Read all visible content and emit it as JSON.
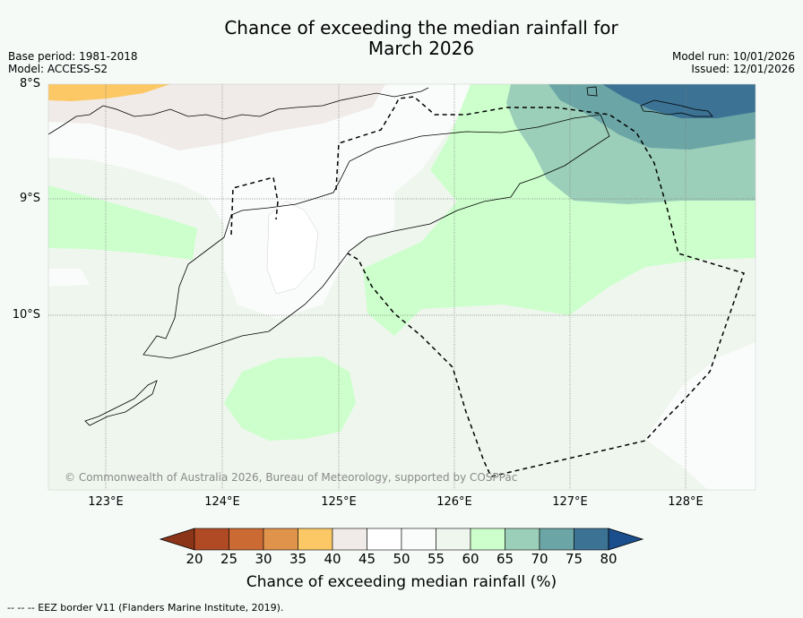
{
  "title_line1": "Chance of exceeding the median rainfall for",
  "title_line2": "March 2026",
  "meta": {
    "base_period": "Base period: 1981-2018",
    "model": "Model: ACCESS-S2",
    "model_run": "Model run: 10/01/2026",
    "issued": "Issued: 12/01/2026"
  },
  "latitudes": [
    "8°S",
    "9°S",
    "10°S"
  ],
  "longitudes": [
    "123°E",
    "124°E",
    "125°E",
    "126°E",
    "127°E",
    "128°E"
  ],
  "copyright": "© Commonwealth of Australia 2026, Bureau of Meteorology, supported by COSPPac",
  "colorbar": {
    "title": "Chance of exceeding median rainfall (%)",
    "ticks": [
      "20",
      "25",
      "30",
      "35",
      "40",
      "45",
      "50",
      "55",
      "60",
      "65",
      "70",
      "75",
      "80"
    ],
    "colors": [
      "#b04a25",
      "#cc6a34",
      "#e0934a",
      "#fcc865",
      "#f0ebe8",
      "#ffffff",
      "#fafcfb",
      "#eff6ee",
      "#ccffcc",
      "#9ccfb9",
      "#6ba5a5",
      "#3c7394"
    ],
    "under_color": "#8b3418",
    "over_color": "#1a4e8c"
  },
  "footnote": "--  --  -- EEZ border V11 (Flanders Marine Institute, 2019)."
}
